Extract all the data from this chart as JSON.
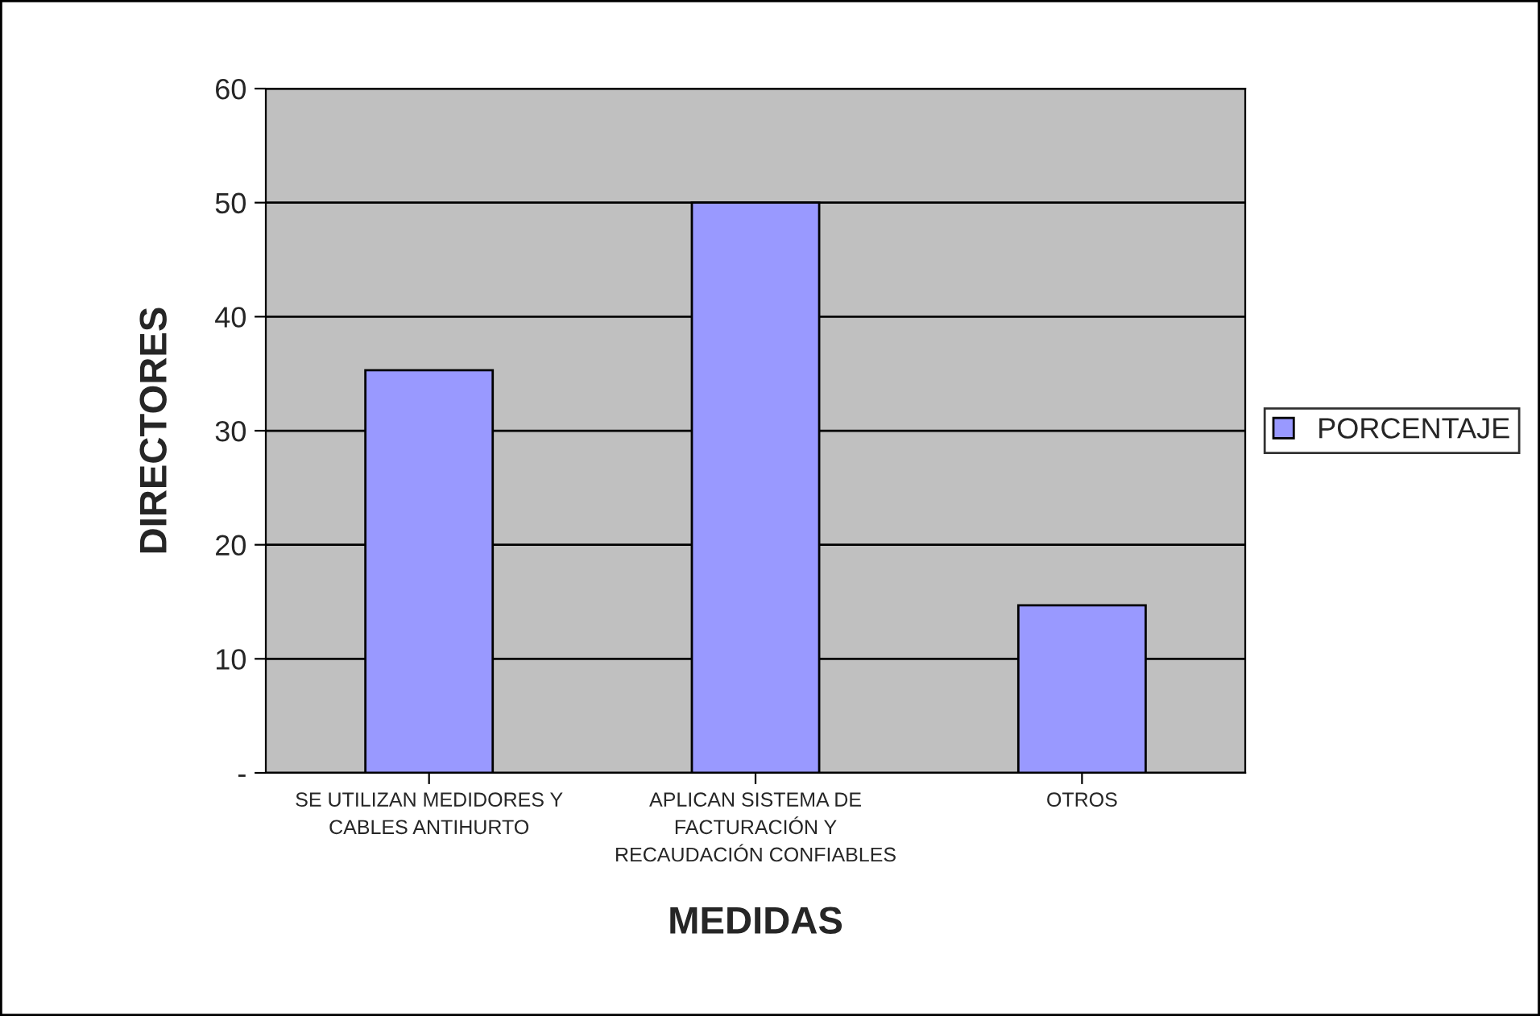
{
  "chart_data": {
    "type": "bar",
    "xlabel": "MEDIDAS",
    "ylabel": "DIRECTORES",
    "categories": [
      "SE UTILIZAN MEDIDORES Y\nCABLES ANTIHURTO",
      "APLICAN SISTEMA DE\nFACTURACIÓN Y\nRECAUDACIÓN CONFIABLES",
      "OTROS"
    ],
    "series": [
      {
        "name": "PORCENTAJE",
        "color": "#9999ff",
        "values": [
          35.3,
          50,
          14.7
        ]
      }
    ],
    "ylim": [
      0,
      60
    ],
    "yticks": [
      {
        "value": 0,
        "label": "-"
      },
      10,
      20,
      30,
      40,
      50,
      60
    ],
    "grid": "y",
    "legend": "right"
  }
}
